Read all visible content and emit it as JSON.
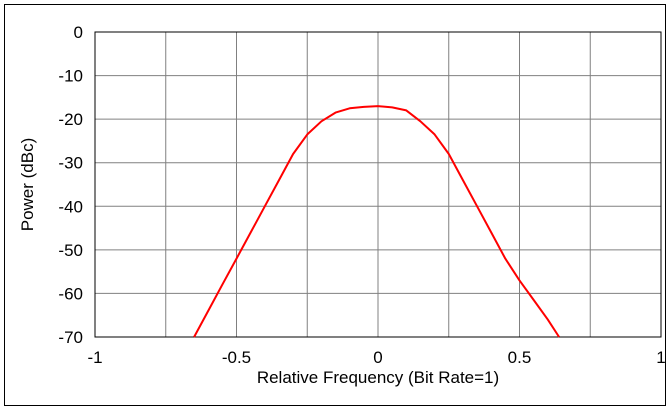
{
  "chart_data": {
    "type": "line",
    "title": "",
    "xlabel": "Relative Frequency (Bit Rate=1)",
    "ylabel": "Power (dBc)",
    "xlim": [
      -1,
      1
    ],
    "ylim": [
      -70,
      0
    ],
    "x_ticks": [
      -1,
      -0.75,
      -0.5,
      -0.25,
      0,
      0.25,
      0.5,
      0.75,
      1
    ],
    "x_tick_labels": [
      "-1",
      "",
      "-0.5",
      "",
      "0",
      "",
      "0.5",
      "",
      "1"
    ],
    "y_ticks": [
      0,
      -10,
      -20,
      -30,
      -40,
      -50,
      -60,
      -70
    ],
    "y_tick_labels": [
      "0",
      "-10",
      "-20",
      "-30",
      "-40",
      "-50",
      "-60",
      "-70"
    ],
    "grid": true,
    "legend": "none",
    "series": [
      {
        "color": "#ff0000",
        "x": [
          -0.65,
          -0.6,
          -0.55,
          -0.5,
          -0.45,
          -0.4,
          -0.35,
          -0.3,
          -0.25,
          -0.2,
          -0.15,
          -0.1,
          -0.05,
          0,
          0.05,
          0.1,
          0.15,
          0.2,
          0.25,
          0.3,
          0.35,
          0.4,
          0.45,
          0.5,
          0.55,
          0.6,
          0.64
        ],
        "y": [
          -70,
          -64,
          -58,
          -52,
          -46,
          -40,
          -34,
          -28,
          -23.5,
          -20.5,
          -18.5,
          -17.5,
          -17.2,
          -17,
          -17.3,
          -18,
          -20.5,
          -23.5,
          -28,
          -34,
          -40,
          -46,
          -52,
          -57,
          -61.5,
          -66,
          -70
        ]
      }
    ]
  }
}
